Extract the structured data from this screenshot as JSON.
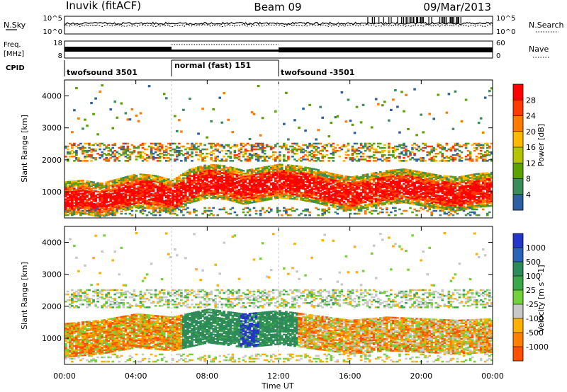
{
  "header": {
    "station": "Inuvik (fitACF)",
    "beam": "Beam 09",
    "date": "09/Mar/2013"
  },
  "noise_panel": {
    "left_label": "N.Sky",
    "right_label": "N.Search",
    "ticks_left": [
      "10^5",
      "10^0"
    ],
    "ticks_right": [
      "10^5",
      "10^0"
    ]
  },
  "freq_panel": {
    "left_label_1": "Freq.",
    "left_label_2": "[MHz]",
    "right_label": "Nave",
    "ticks_left": [
      "18",
      "8"
    ],
    "ticks_right": [
      "60",
      "0"
    ]
  },
  "cpid": {
    "label": "CPID",
    "segments": [
      {
        "name": "twofsound 3501",
        "start": 0,
        "end": 6
      },
      {
        "name": "normal (fast) 151",
        "start": 6,
        "end": 12
      },
      {
        "name": "twofsound -3501",
        "start": 12,
        "end": 24
      }
    ]
  },
  "power_colorbar": {
    "label": "Power [dB]",
    "ticks": [
      "28",
      "24",
      "20",
      "16",
      "12",
      "8",
      "4"
    ],
    "colors": [
      "#ff0000",
      "#ff3b00",
      "#ff7a00",
      "#ffb800",
      "#b5c400",
      "#5aa300",
      "#3a8c5a",
      "#2e5fa0",
      "#0000ff"
    ]
  },
  "velocity_colorbar": {
    "label": "Velocity [m s^-1]",
    "ticks": [
      "1000",
      "500",
      "100",
      "25",
      "-25",
      "-100",
      "-500",
      "-1000"
    ],
    "colors": [
      "#2436c8",
      "#2a62b8",
      "#2f8a5a",
      "#3ca64a",
      "#74d13c",
      "#c8c8c8",
      "#ffb000",
      "#ff8000",
      "#ff5000",
      "#ff0000"
    ]
  },
  "chart_data": {
    "type": "heatmap",
    "title": "",
    "xlabel": "Time UT",
    "ylabel": "Slant Range [km]",
    "x_ticks": [
      "00:00",
      "04:00",
      "08:00",
      "12:00",
      "16:00",
      "20:00",
      "00:00"
    ],
    "y_ticks": [
      "1000",
      "2000",
      "3000",
      "4000"
    ],
    "xlim": [
      0,
      24
    ],
    "ylim": [
      180,
      4500
    ],
    "panels": [
      {
        "name": "Power",
        "main_band": [
          {
            "t": 0,
            "range": 750
          },
          {
            "t": 1,
            "range": 800
          },
          {
            "t": 2,
            "range": 700
          },
          {
            "t": 3,
            "range": 850
          },
          {
            "t": 4,
            "range": 1000
          },
          {
            "t": 5,
            "range": 950
          },
          {
            "t": 6,
            "range": 800
          },
          {
            "t": 7,
            "range": 1150
          },
          {
            "t": 8,
            "range": 1300
          },
          {
            "t": 9,
            "range": 1250
          },
          {
            "t": 10,
            "range": 1100
          },
          {
            "t": 11,
            "range": 1200
          },
          {
            "t": 12,
            "range": 1300
          },
          {
            "t": 13,
            "range": 1250
          },
          {
            "t": 14,
            "range": 1150
          },
          {
            "t": 15,
            "range": 1000
          },
          {
            "t": 16,
            "range": 900
          },
          {
            "t": 17,
            "range": 1000
          },
          {
            "t": 18,
            "range": 1100
          },
          {
            "t": 19,
            "range": 1150
          },
          {
            "t": 20,
            "range": 1050
          },
          {
            "t": 21,
            "range": 950
          },
          {
            "t": 22,
            "range": 900
          },
          {
            "t": 23,
            "range": 1000
          },
          {
            "t": 24,
            "range": 1050
          }
        ],
        "upper_band_range": 2200
      },
      {
        "name": "Velocity",
        "main_band": [
          {
            "t": 0,
            "range": 900
          },
          {
            "t": 2,
            "range": 1000
          },
          {
            "t": 4,
            "range": 1200
          },
          {
            "t": 6,
            "range": 1100
          },
          {
            "t": 8,
            "range": 1350
          },
          {
            "t": 10,
            "range": 1200
          },
          {
            "t": 12,
            "range": 1300
          },
          {
            "t": 14,
            "range": 1150
          },
          {
            "t": 16,
            "range": 1000
          },
          {
            "t": 18,
            "range": 1100
          },
          {
            "t": 20,
            "range": 1050
          },
          {
            "t": 22,
            "range": 1000
          },
          {
            "t": 24,
            "range": 1050
          }
        ],
        "upper_band_range": 2200
      }
    ]
  }
}
